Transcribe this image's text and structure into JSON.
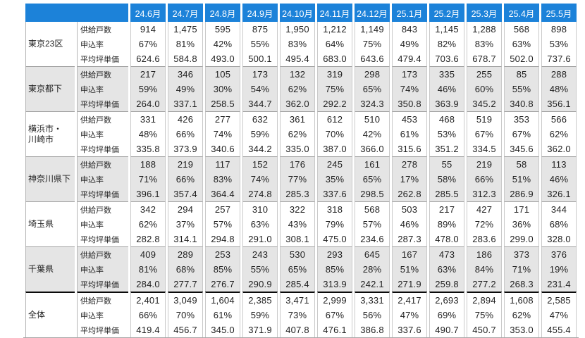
{
  "colors": {
    "header_bg": "#1c82d9",
    "header_text": "#ffffff",
    "shaded_bg": "#e5e5e5",
    "separator": "#a0a0a0",
    "emphasis_border": "#0a0a0a"
  },
  "chart_data": {
    "type": "table",
    "corner_label": "",
    "columns": [
      "24.6月",
      "24.7月",
      "24.8月",
      "24.9月",
      "24.10月",
      "24.11月",
      "24.12月",
      "25.1月",
      "25.2月",
      "25.3月",
      "25.4月",
      "25.5月"
    ],
    "metric_labels": [
      "供給戸数",
      "申込率",
      "平均坪単価"
    ],
    "groups": [
      {
        "region": "東京23区",
        "shaded": false,
        "total": false,
        "rows": [
          {
            "label": "供給戸数",
            "values": [
              "914",
              "1,475",
              "595",
              "875",
              "1,950",
              "1,212",
              "1,149",
              "843",
              "1,145",
              "1,288",
              "568",
              "898"
            ]
          },
          {
            "label": "申込率",
            "values": [
              "67%",
              "81%",
              "42%",
              "55%",
              "83%",
              "64%",
              "75%",
              "49%",
              "82%",
              "83%",
              "63%",
              "53%"
            ]
          },
          {
            "label": "平均坪単価",
            "values": [
              "624.6",
              "584.8",
              "493.0",
              "500.1",
              "495.4",
              "683.0",
              "643.6",
              "479.4",
              "703.6",
              "678.7",
              "502.0",
              "737.6"
            ]
          }
        ]
      },
      {
        "region": "東京都下",
        "shaded": true,
        "total": false,
        "rows": [
          {
            "label": "供給戸数",
            "values": [
              "217",
              "346",
              "105",
              "173",
              "132",
              "319",
              "298",
              "173",
              "335",
              "255",
              "85",
              "288"
            ]
          },
          {
            "label": "申込率",
            "values": [
              "59%",
              "49%",
              "30%",
              "54%",
              "62%",
              "75%",
              "65%",
              "74%",
              "46%",
              "60%",
              "55%",
              "48%"
            ]
          },
          {
            "label": "平均坪単価",
            "values": [
              "264.0",
              "337.1",
              "258.5",
              "344.7",
              "362.0",
              "292.2",
              "324.3",
              "350.8",
              "363.9",
              "345.2",
              "340.8",
              "356.1"
            ]
          }
        ]
      },
      {
        "region": "横浜市・\n川崎市",
        "shaded": false,
        "total": false,
        "rows": [
          {
            "label": "供給戸数",
            "values": [
              "331",
              "426",
              "277",
              "632",
              "361",
              "612",
              "510",
              "453",
              "468",
              "519",
              "353",
              "566"
            ]
          },
          {
            "label": "申込率",
            "values": [
              "48%",
              "66%",
              "74%",
              "59%",
              "62%",
              "70%",
              "42%",
              "61%",
              "53%",
              "67%",
              "67%",
              "62%"
            ]
          },
          {
            "label": "平均坪単価",
            "values": [
              "335.8",
              "373.9",
              "340.6",
              "344.2",
              "335.0",
              "387.0",
              "366.0",
              "315.6",
              "351.2",
              "334.5",
              "345.6",
              "362.0"
            ]
          }
        ]
      },
      {
        "region": "神奈川県下",
        "shaded": true,
        "total": false,
        "rows": [
          {
            "label": "供給戸数",
            "values": [
              "188",
              "219",
              "117",
              "152",
              "176",
              "245",
              "161",
              "278",
              "55",
              "219",
              "58",
              "113"
            ]
          },
          {
            "label": "申込率",
            "values": [
              "71%",
              "66%",
              "83%",
              "74%",
              "77%",
              "35%",
              "65%",
              "17%",
              "58%",
              "66%",
              "51%",
              "46%"
            ]
          },
          {
            "label": "平均坪単価",
            "values": [
              "396.1",
              "357.4",
              "364.4",
              "274.8",
              "285.3",
              "337.6",
              "298.5",
              "262.8",
              "285.5",
              "312.3",
              "286.9",
              "326.1"
            ]
          }
        ]
      },
      {
        "region": "埼玉県",
        "shaded": false,
        "total": false,
        "rows": [
          {
            "label": "供給戸数",
            "values": [
              "342",
              "294",
              "257",
              "310",
              "322",
              "318",
              "568",
              "503",
              "217",
              "427",
              "171",
              "344"
            ]
          },
          {
            "label": "申込率",
            "values": [
              "62%",
              "37%",
              "57%",
              "63%",
              "43%",
              "79%",
              "57%",
              "46%",
              "89%",
              "72%",
              "36%",
              "68%"
            ]
          },
          {
            "label": "平均坪単価",
            "values": [
              "282.8",
              "314.1",
              "294.8",
              "291.0",
              "308.1",
              "475.0",
              "234.6",
              "287.3",
              "478.0",
              "283.6",
              "299.0",
              "328.0"
            ]
          }
        ]
      },
      {
        "region": "千葉県",
        "shaded": true,
        "total": false,
        "rows": [
          {
            "label": "供給戸数",
            "values": [
              "409",
              "289",
              "253",
              "243",
              "530",
              "293",
              "645",
              "167",
              "473",
              "186",
              "373",
              "376"
            ]
          },
          {
            "label": "申込率",
            "values": [
              "81%",
              "68%",
              "85%",
              "55%",
              "65%",
              "85%",
              "28%",
              "51%",
              "63%",
              "84%",
              "71%",
              "19%"
            ]
          },
          {
            "label": "平均坪単価",
            "values": [
              "284.0",
              "277.7",
              "276.7",
              "290.9",
              "285.4",
              "313.9",
              "242.1",
              "271.9",
              "259.8",
              "277.2",
              "268.3",
              "231.4"
            ]
          }
        ]
      },
      {
        "region": "全体",
        "shaded": false,
        "total": true,
        "rows": [
          {
            "label": "供給戸数",
            "values": [
              "2,401",
              "3,049",
              "1,604",
              "2,385",
              "3,471",
              "2,999",
              "3,331",
              "2,417",
              "2,693",
              "2,894",
              "1,608",
              "2,585"
            ]
          },
          {
            "label": "申込率",
            "values": [
              "66%",
              "70%",
              "61%",
              "59%",
              "73%",
              "67%",
              "56%",
              "47%",
              "69%",
              "75%",
              "62%",
              "47%"
            ]
          },
          {
            "label": "平均坪単価",
            "values": [
              "419.4",
              "456.7",
              "345.0",
              "371.9",
              "407.8",
              "476.1",
              "386.8",
              "337.6",
              "490.7",
              "450.7",
              "353.0",
              "455.4"
            ]
          }
        ]
      }
    ]
  }
}
